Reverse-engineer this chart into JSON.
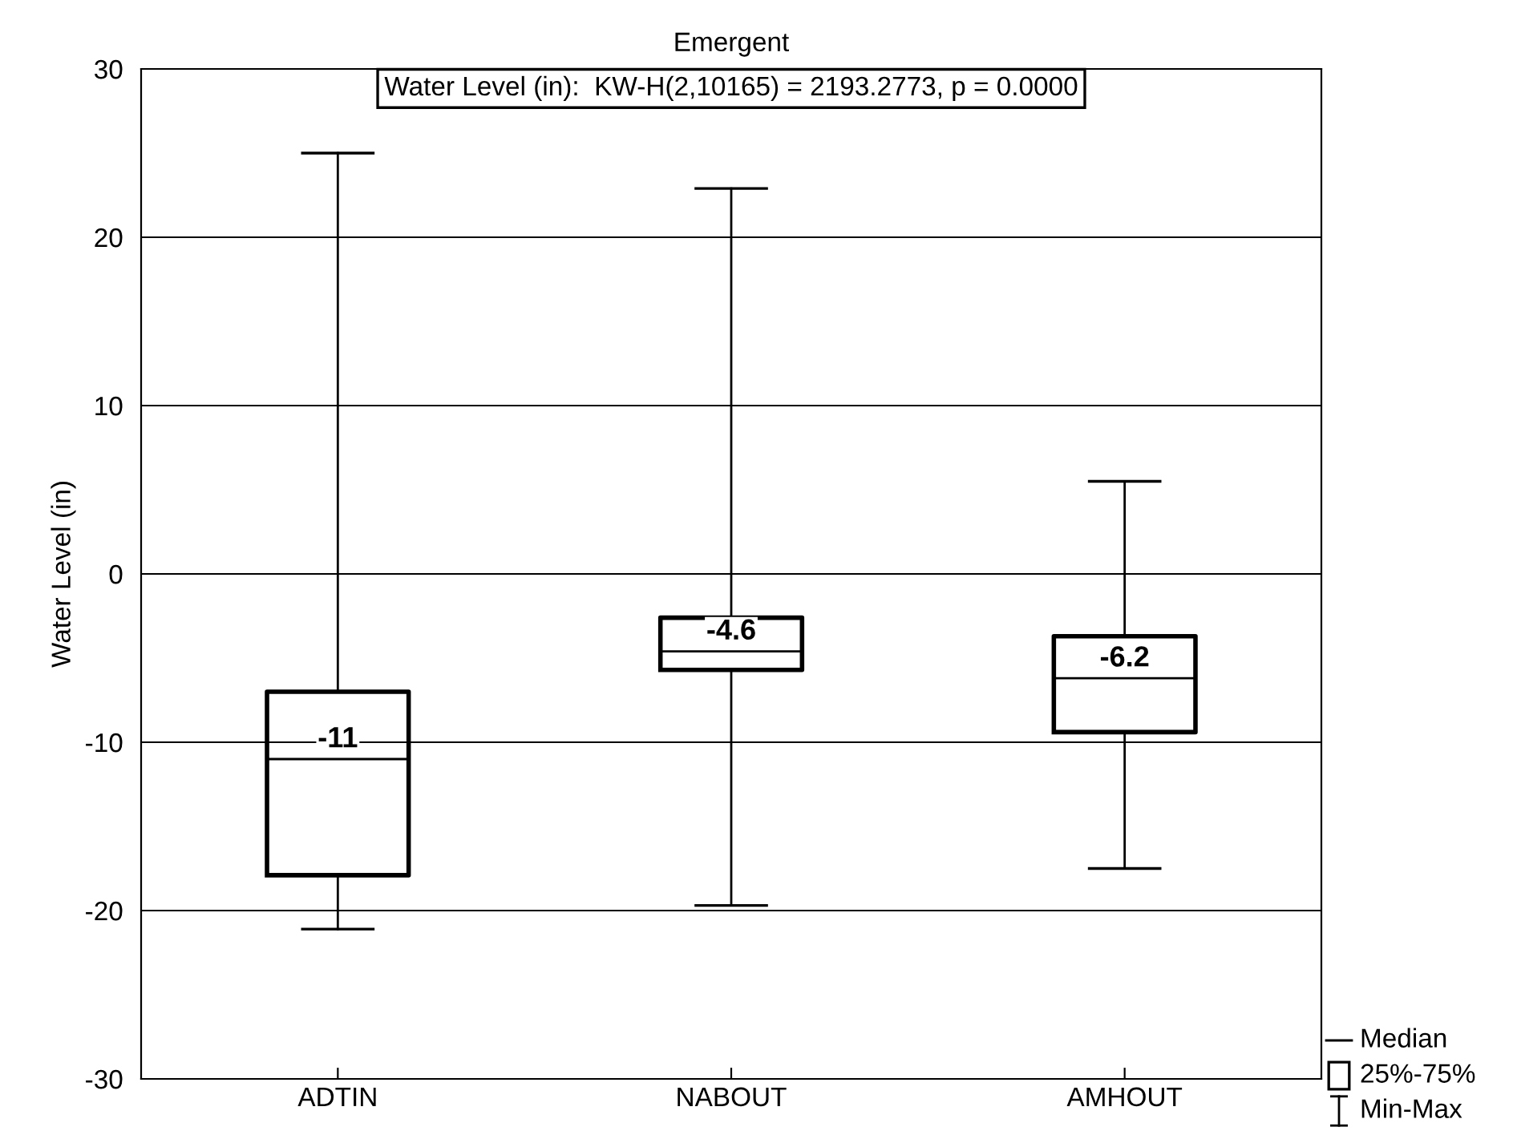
{
  "chart_data": {
    "type": "box",
    "title": "Emergent",
    "ylabel": "Water Level (in)",
    "categories": [
      "ADTIN",
      "NABOUT",
      "AMHOUT"
    ],
    "boxes": [
      {
        "low": -21.1,
        "q1": -17.9,
        "median": -11,
        "q3": -7.0,
        "high": 25
      },
      {
        "low": -19.7,
        "q1": -5.7,
        "median": -4.6,
        "q3": -2.6,
        "high": 22.9
      },
      {
        "low": -17.5,
        "q1": -9.4,
        "median": -6.2,
        "q3": -3.7,
        "high": 5.5
      }
    ],
    "ylim": [
      -30,
      30
    ],
    "yticks": [
      -30,
      -20,
      -10,
      0,
      10,
      20,
      30
    ],
    "grid": "y",
    "value_labels": [
      "-11",
      "-4.6",
      "-6.2"
    ],
    "annotations": [
      "Water Level (in):  KW-H(2,10165) = 2193.2773, p = 0.0000",
      "Median",
      "25%-75%",
      "Min-Max"
    ]
  }
}
